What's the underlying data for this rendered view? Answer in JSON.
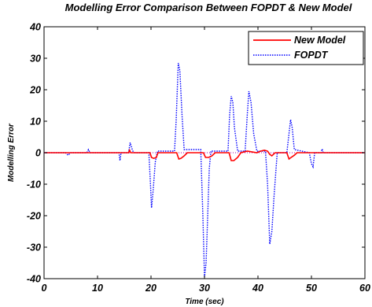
{
  "chart_data": {
    "type": "line",
    "title": "Modelling Error Comparison Between FOPDT & New Model",
    "xlabel": "Time (sec)",
    "ylabel": "Modelling Error",
    "xlim": [
      0,
      60
    ],
    "ylim": [
      -40,
      40
    ],
    "xticks": [
      0,
      10,
      20,
      30,
      40,
      50,
      60
    ],
    "yticks": [
      -40,
      -30,
      -20,
      -10,
      0,
      10,
      20,
      30,
      40
    ],
    "grid": false,
    "legend_position": "top-right",
    "series": [
      {
        "name": "New Model",
        "color": "#ff0000",
        "style": "solid",
        "x": [
          0,
          15.8,
          16.0,
          16.2,
          19.8,
          20.1,
          20.5,
          21.0,
          21.3,
          24.8,
          25.2,
          25.6,
          26.2,
          26.8,
          29.8,
          30.2,
          30.8,
          31.4,
          32.0,
          34.6,
          35.0,
          35.5,
          36.2,
          36.8,
          38.0,
          39.8,
          40.5,
          41.2,
          41.8,
          42.2,
          42.6,
          43.2,
          45.4,
          45.8,
          46.2,
          46.8,
          47.3,
          60
        ],
        "y": [
          0,
          0,
          0.8,
          0,
          0,
          -1.5,
          -1.8,
          -1.5,
          0,
          0,
          -2.0,
          -1.8,
          -1.0,
          0,
          0,
          -1.5,
          -1.5,
          -1.0,
          0,
          0,
          -2.5,
          -2.5,
          -1.5,
          0,
          0.5,
          0,
          0.5,
          0.8,
          0.5,
          -0.5,
          -1.0,
          0,
          0,
          -2.0,
          -1.5,
          -0.8,
          0,
          0
        ]
      },
      {
        "name": "FOPDT",
        "color": "#0000ff",
        "style": "dotted",
        "x": [
          0,
          4.0,
          4.5,
          5.0,
          8.0,
          8.3,
          8.6,
          14.0,
          14.2,
          14.4,
          15.8,
          16.1,
          16.4,
          16.6,
          17.0,
          19.6,
          19.9,
          20.1,
          20.4,
          20.8,
          21.2,
          24.4,
          24.7,
          25.1,
          25.4,
          25.8,
          26.2,
          29.3,
          29.7,
          30.0,
          30.3,
          30.6,
          30.9,
          31.2,
          34.4,
          34.7,
          35.0,
          35.3,
          35.6,
          36.2,
          37.6,
          38.0,
          38.3,
          38.7,
          39.2,
          39.8,
          41.4,
          41.8,
          42.2,
          42.6,
          43.0,
          43.6,
          45.4,
          45.8,
          46.1,
          46.4,
          46.8,
          49.6,
          50.0,
          50.3,
          50.6,
          51.8,
          52.0,
          52.2,
          60
        ],
        "y": [
          0,
          0,
          -0.8,
          0,
          0,
          1.0,
          0,
          0,
          -2.5,
          0,
          0,
          3.2,
          1.5,
          0.5,
          0,
          0,
          -10,
          -17.5,
          -12,
          -3,
          0.5,
          0.5,
          10,
          28.5,
          26,
          12,
          1,
          1,
          -20,
          -39.5,
          -35,
          -20,
          -5,
          0.5,
          0.5,
          12,
          18,
          16,
          8,
          0.5,
          0.5,
          12,
          19.5,
          16,
          6,
          0.5,
          0.5,
          -10,
          -29,
          -25,
          -14,
          0,
          0,
          6,
          10.5,
          8,
          1,
          0,
          -3.5,
          -4.5,
          0,
          0,
          1.2,
          0,
          0
        ]
      }
    ]
  }
}
